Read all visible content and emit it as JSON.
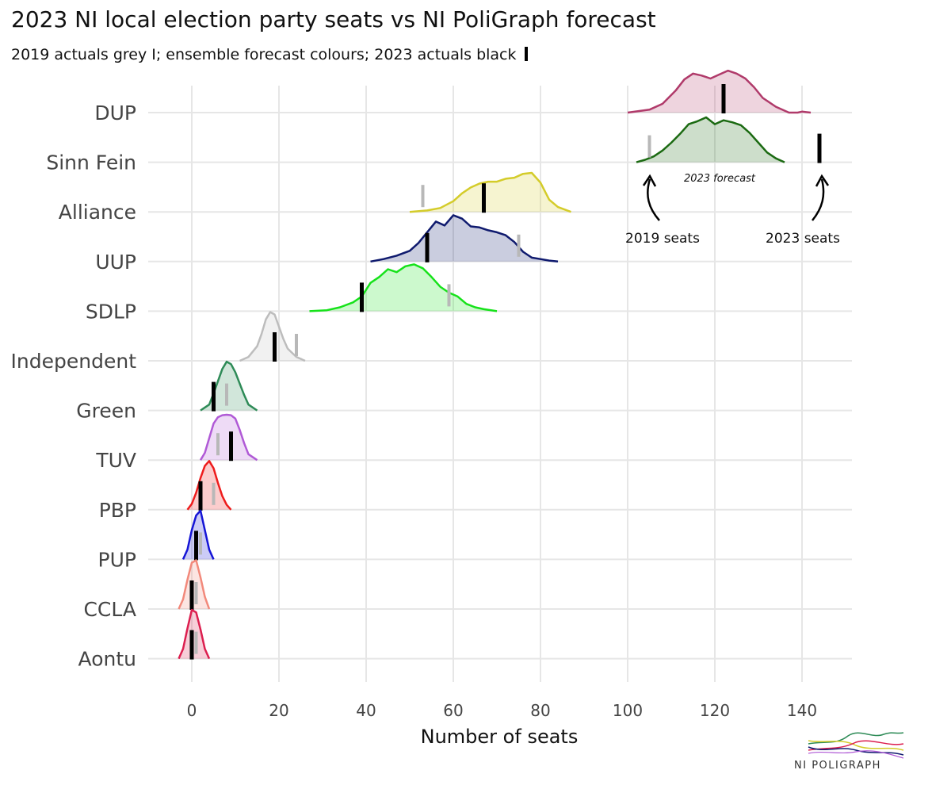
{
  "title": "2023 NI local election party seats vs NI PoliGraph forecast",
  "subtitle": "2019 actuals grey I; ensemble forecast colours; 2023 actuals black",
  "brand": "NI POLIGRAPH",
  "chart_data": {
    "type": "ridgeline",
    "xlabel": "Number of seats",
    "xlim": [
      -10,
      152
    ],
    "xticks": [
      0,
      20,
      40,
      60,
      80,
      100,
      120,
      140
    ],
    "grid": true,
    "annotations": {
      "forecast": "2023 forecast",
      "seats_2019": "2019 seats",
      "seats_2023": "2023 seats"
    },
    "parties": [
      {
        "name": "DUP",
        "color": "#b03a6a",
        "seats_2019": 122,
        "seats_2023": 122,
        "forecast_x": [
          100,
          105,
          108,
          111,
          113,
          115,
          117,
          119,
          121,
          123,
          125,
          127,
          129,
          131,
          134,
          137,
          139,
          140,
          142
        ],
        "forecast_d": [
          0,
          0.06,
          0.18,
          0.45,
          0.68,
          0.8,
          0.76,
          0.7,
          0.78,
          0.86,
          0.8,
          0.7,
          0.52,
          0.3,
          0.12,
          0,
          0,
          0.02,
          0
        ]
      },
      {
        "name": "Sinn Fein",
        "color": "#1b6a12",
        "seats_2019": 105,
        "seats_2023": 144,
        "forecast_x": [
          102,
          104,
          106,
          108,
          110,
          112,
          114,
          116,
          118,
          120,
          122,
          124,
          126,
          128,
          130,
          132,
          134,
          136
        ],
        "forecast_d": [
          0,
          0.05,
          0.12,
          0.24,
          0.4,
          0.58,
          0.78,
          0.84,
          0.92,
          0.78,
          0.86,
          0.82,
          0.76,
          0.6,
          0.4,
          0.2,
          0.08,
          0
        ]
      },
      {
        "name": "Alliance",
        "color": "#d4cc2a",
        "seats_2019": 53,
        "seats_2023": 67,
        "forecast_x": [
          50,
          54,
          57,
          60,
          62,
          64,
          66,
          68,
          70,
          72,
          74,
          76,
          78,
          80,
          82,
          84,
          87
        ],
        "forecast_d": [
          0,
          0.03,
          0.08,
          0.22,
          0.38,
          0.5,
          0.58,
          0.62,
          0.62,
          0.68,
          0.7,
          0.78,
          0.8,
          0.6,
          0.25,
          0.1,
          0
        ]
      },
      {
        "name": "UUP",
        "color": "#0f1a6e",
        "seats_2019": 75,
        "seats_2023": 54,
        "forecast_x": [
          41,
          44,
          47,
          50,
          52,
          54,
          56,
          58,
          60,
          62,
          64,
          66,
          68,
          70,
          72,
          74,
          76,
          78,
          80,
          82,
          84
        ],
        "forecast_d": [
          0,
          0.05,
          0.12,
          0.22,
          0.38,
          0.6,
          0.82,
          0.74,
          0.95,
          0.88,
          0.72,
          0.7,
          0.64,
          0.6,
          0.54,
          0.4,
          0.2,
          0.08,
          0.05,
          0.02,
          0
        ]
      },
      {
        "name": "SDLP",
        "color": "#16e21a",
        "seats_2019": 59,
        "seats_2023": 39,
        "forecast_x": [
          27,
          31,
          34,
          37,
          39,
          41,
          43,
          45,
          47,
          49,
          51,
          53,
          55,
          57,
          59,
          61,
          63,
          65,
          67,
          70
        ],
        "forecast_d": [
          0,
          0.02,
          0.08,
          0.18,
          0.3,
          0.58,
          0.7,
          0.86,
          0.8,
          0.92,
          0.96,
          0.88,
          0.7,
          0.5,
          0.38,
          0.3,
          0.15,
          0.08,
          0.04,
          0
        ]
      },
      {
        "name": "Independent",
        "color": "#bdbdbd",
        "seats_2019": 24,
        "seats_2023": 19,
        "forecast_x": [
          11,
          13,
          15,
          16,
          17,
          18,
          19,
          20,
          21,
          22,
          24,
          26
        ],
        "forecast_d": [
          0,
          0.08,
          0.3,
          0.55,
          0.85,
          1.0,
          0.95,
          0.7,
          0.45,
          0.25,
          0.08,
          0
        ]
      },
      {
        "name": "Green",
        "color": "#2e8b57",
        "seats_2019": 8,
        "seats_2023": 5,
        "forecast_x": [
          2,
          4,
          5,
          6,
          7,
          8,
          9,
          10,
          11,
          12,
          13,
          15
        ],
        "forecast_d": [
          0,
          0.12,
          0.35,
          0.6,
          0.85,
          1.0,
          0.95,
          0.78,
          0.55,
          0.32,
          0.12,
          0
        ]
      },
      {
        "name": "TUV",
        "color": "#b05ad6",
        "seats_2019": 6,
        "seats_2023": 9,
        "forecast_x": [
          2,
          3,
          4,
          5,
          6,
          7,
          8,
          9,
          10,
          11,
          12,
          13,
          15
        ],
        "forecast_d": [
          0,
          0.15,
          0.45,
          0.75,
          0.88,
          0.92,
          0.93,
          0.92,
          0.85,
          0.62,
          0.35,
          0.12,
          0
        ]
      },
      {
        "name": "PBP",
        "color": "#ee1c1c",
        "seats_2019": 5,
        "seats_2023": 2,
        "forecast_x": [
          -1,
          0,
          1,
          2,
          3,
          4,
          5,
          6,
          7,
          8,
          9
        ],
        "forecast_d": [
          0,
          0.12,
          0.35,
          0.65,
          0.9,
          1.0,
          0.85,
          0.55,
          0.28,
          0.1,
          0
        ]
      },
      {
        "name": "PUP",
        "color": "#1515d6",
        "seats_2019": 2,
        "seats_2023": 1,
        "forecast_x": [
          -2,
          -1,
          0,
          1,
          2,
          3,
          4,
          5
        ],
        "forecast_d": [
          0,
          0.2,
          0.6,
          0.9,
          1.0,
          0.6,
          0.2,
          0
        ]
      },
      {
        "name": "CCLA",
        "color": "#f2897b",
        "seats_2019": 1,
        "seats_2023": 0,
        "forecast_x": [
          -3,
          -2,
          -1,
          0,
          1,
          2,
          3,
          4
        ],
        "forecast_d": [
          0,
          0.2,
          0.6,
          0.95,
          1.0,
          0.65,
          0.25,
          0
        ]
      },
      {
        "name": "Aontu",
        "color": "#dc1f4f",
        "seats_2019": 1,
        "seats_2023": 0,
        "forecast_x": [
          -3,
          -2,
          -1,
          0,
          1,
          2,
          3,
          4
        ],
        "forecast_d": [
          0,
          0.2,
          0.62,
          1.0,
          0.95,
          0.6,
          0.2,
          0
        ]
      }
    ]
  }
}
